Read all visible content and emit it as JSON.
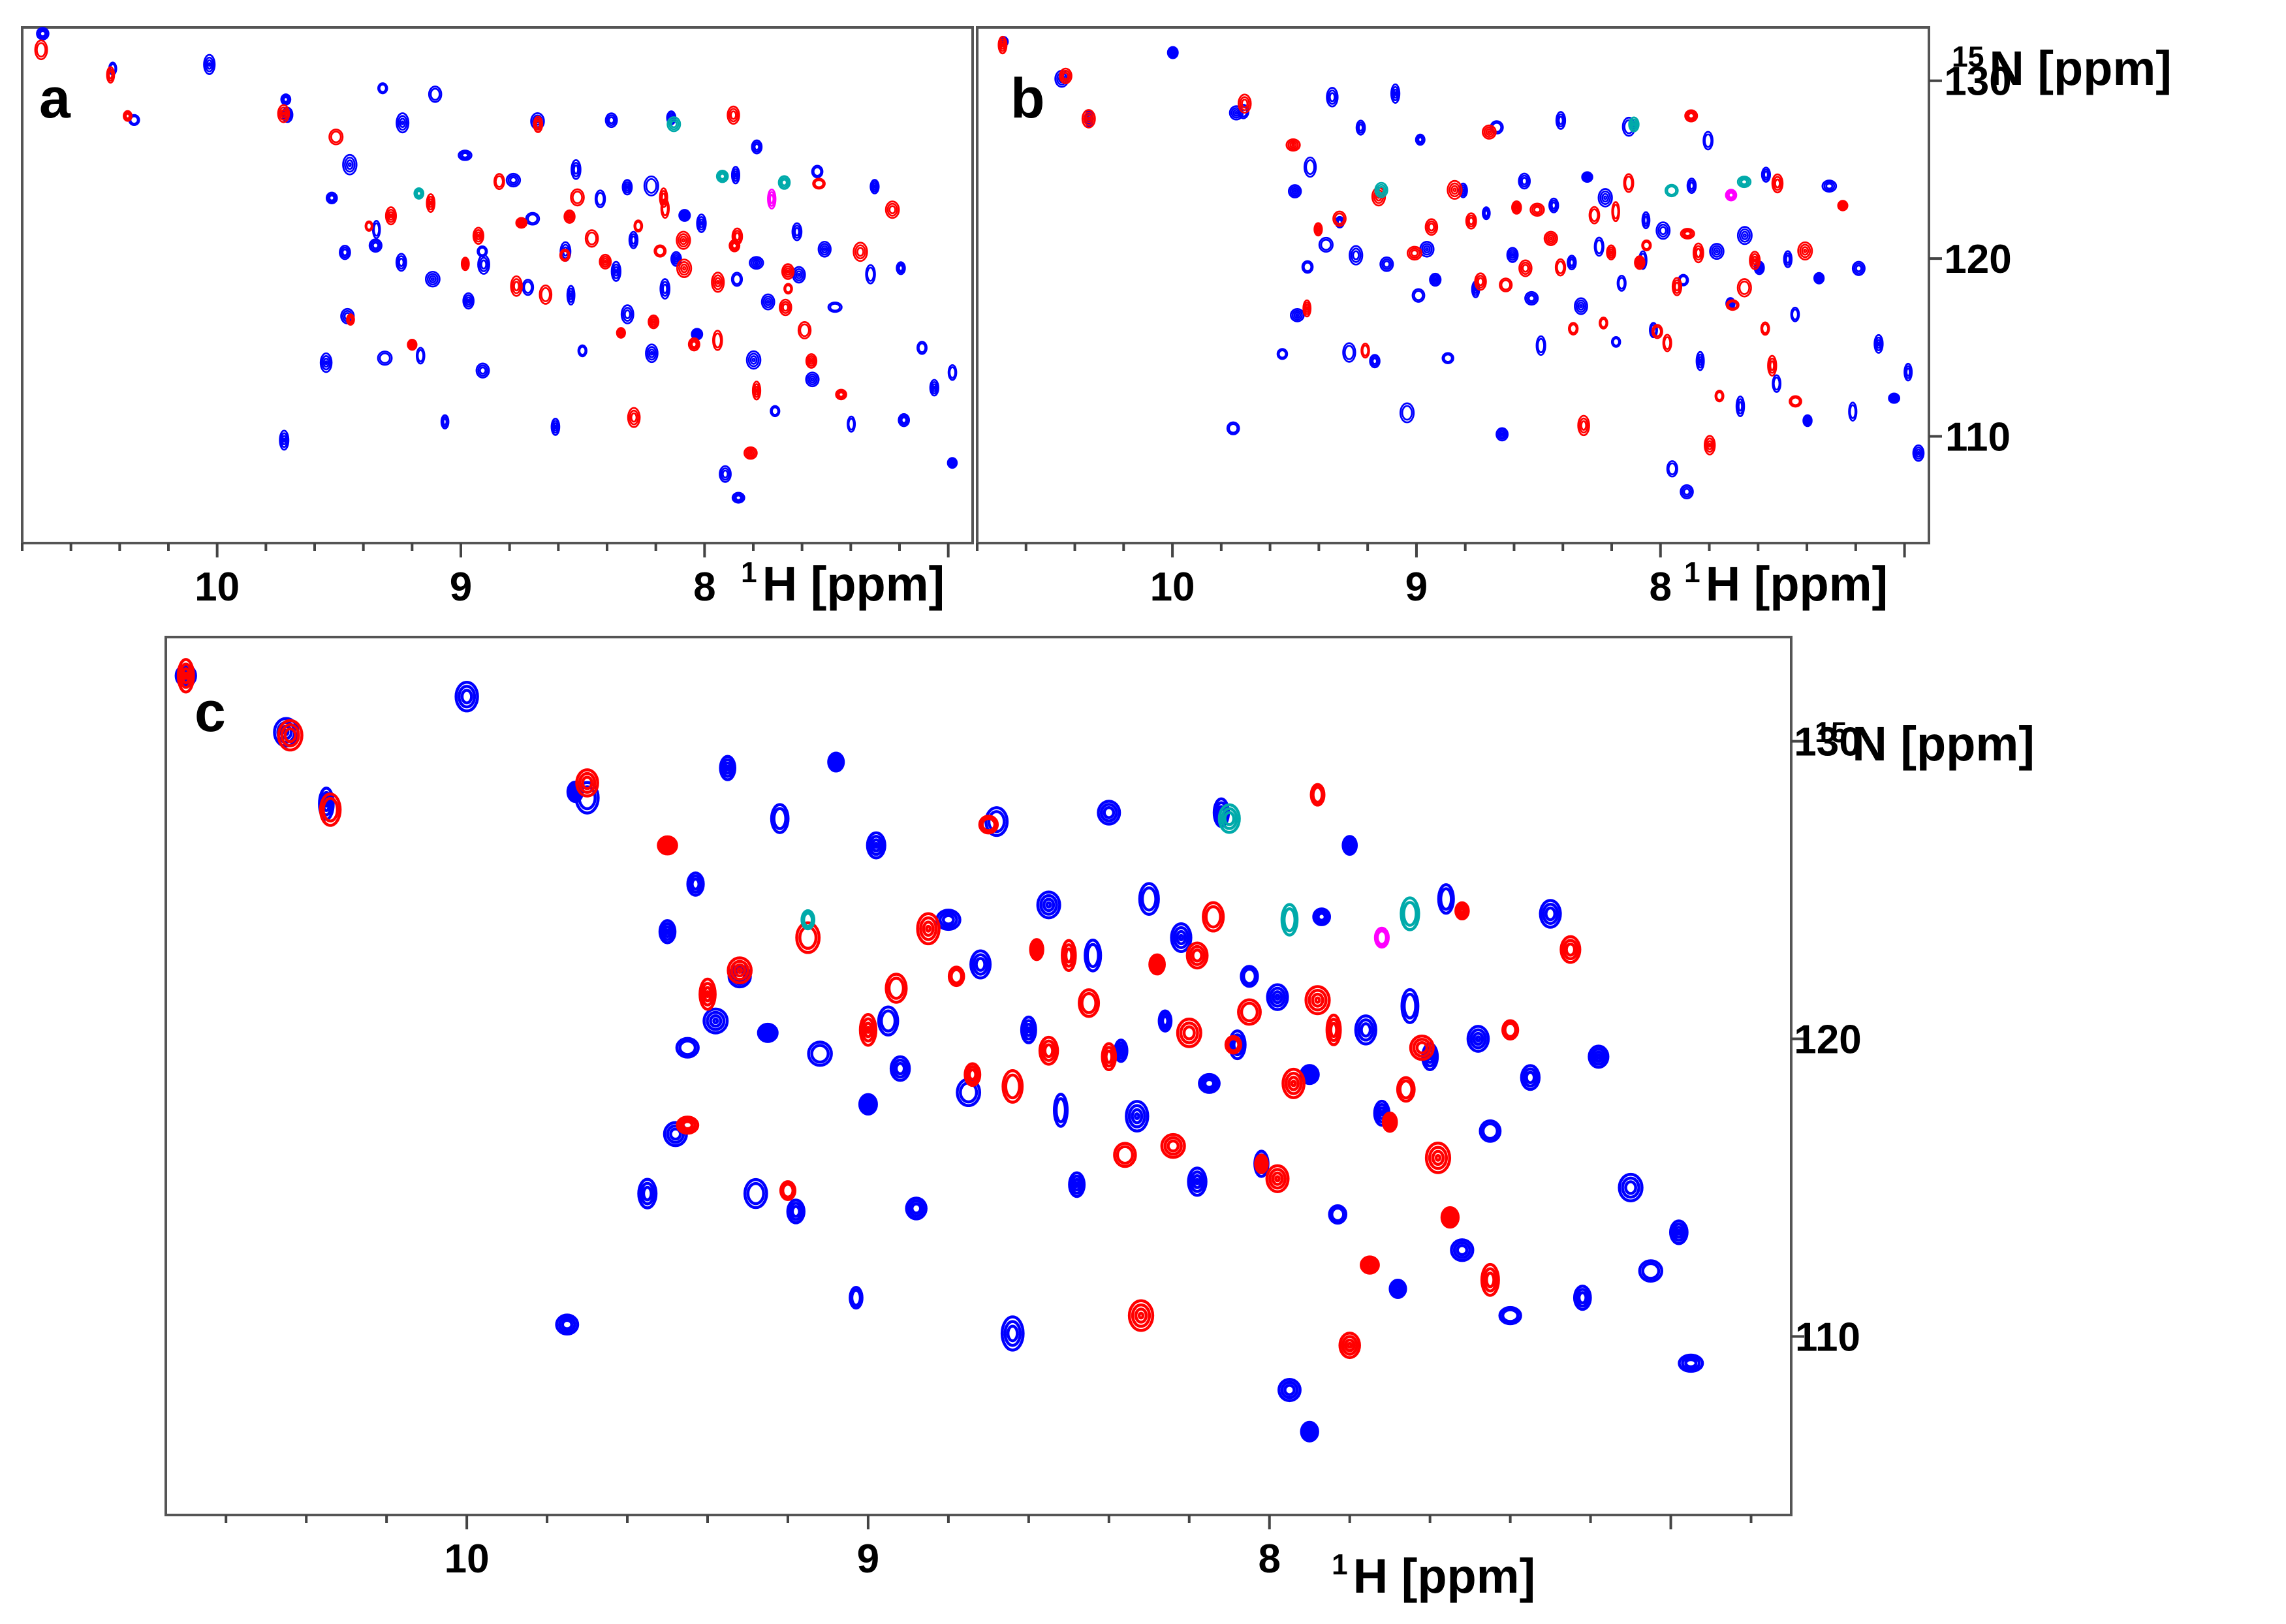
{
  "colors": {
    "series_1": "#0000ff",
    "series_2": "#ff0000",
    "minor_1": "#ff00ff",
    "minor_2": "#00aaaa"
  },
  "chart_data": [
    {
      "type": "scatter",
      "panel": "a",
      "title": "a",
      "xlabel_sup": "1",
      "xlabel": "H [ppm]",
      "ylabel": "",
      "xlim": [
        10.8,
        6.9
      ],
      "ylim": [
        133,
        104
      ],
      "x_ticks": [
        10,
        9,
        8
      ],
      "y_ticks": []
    },
    {
      "type": "scatter",
      "panel": "b",
      "title": "b",
      "xlabel_sup": "1",
      "xlabel": "H [ppm]",
      "ylabel_sup": "15",
      "ylabel": "N [ppm]",
      "xlim": [
        10.8,
        6.9
      ],
      "ylim": [
        133,
        104
      ],
      "x_ticks": [
        10,
        9,
        8
      ],
      "y_ticks": [
        110,
        120,
        130
      ]
    },
    {
      "type": "scatter",
      "panel": "c",
      "title": "c",
      "xlabel_sup": "1",
      "xlabel": "H [ppm]",
      "ylabel_sup": "15",
      "ylabel": "N [ppm]",
      "xlim": [
        10.75,
        6.7
      ],
      "ylim": [
        133.5,
        104
      ],
      "x_ticks": [
        10,
        9,
        8
      ],
      "y_ticks": [
        110,
        120,
        130
      ],
      "series": [
        {
          "name": "blue",
          "color_key": "series_1",
          "points": [
            [
              10.7,
              132.2
            ],
            [
              10.45,
              130.3
            ],
            [
              10.35,
              127.9
            ],
            [
              10.0,
              131.5
            ],
            [
              9.75,
              110.4
            ],
            [
              9.73,
              128.3
            ],
            [
              9.7,
              128.1
            ],
            [
              9.55,
              114.8
            ],
            [
              9.5,
              123.6
            ],
            [
              9.48,
              116.8
            ],
            [
              9.45,
              119.7
            ],
            [
              9.43,
              125.2
            ],
            [
              9.38,
              120.6
            ],
            [
              9.35,
              129.1
            ],
            [
              9.32,
              122.1
            ],
            [
              9.28,
              114.8
            ],
            [
              9.25,
              120.2
            ],
            [
              9.22,
              127.4
            ],
            [
              9.18,
              114.2
            ],
            [
              9.12,
              119.5
            ],
            [
              9.08,
              129.3
            ],
            [
              9.03,
              111.3
            ],
            [
              9.0,
              117.8
            ],
            [
              8.98,
              126.5
            ],
            [
              8.95,
              120.6
            ],
            [
              8.92,
              119.0
            ],
            [
              8.88,
              114.3
            ],
            [
              8.8,
              124.0
            ],
            [
              8.75,
              118.2
            ],
            [
              8.72,
              122.5
            ],
            [
              8.68,
              127.3
            ],
            [
              8.64,
              110.1
            ],
            [
              8.6,
              120.3
            ],
            [
              8.55,
              124.5
            ],
            [
              8.52,
              117.6
            ],
            [
              8.48,
              115.1
            ],
            [
              8.44,
              122.8
            ],
            [
              8.4,
              127.6
            ],
            [
              8.37,
              119.6
            ],
            [
              8.33,
              117.4
            ],
            [
              8.3,
              124.7
            ],
            [
              8.26,
              120.6
            ],
            [
              8.22,
              123.4
            ],
            [
              8.18,
              115.2
            ],
            [
              8.15,
              118.5
            ],
            [
              8.12,
              127.6
            ],
            [
              8.08,
              119.8
            ],
            [
              8.05,
              122.1
            ],
            [
              8.02,
              115.8
            ],
            [
              7.98,
              121.4
            ],
            [
              7.95,
              108.2
            ],
            [
              7.9,
              118.8
            ],
            [
              7.87,
              124.1
            ],
            [
              7.83,
              114.1
            ],
            [
              7.8,
              126.5
            ],
            [
              7.76,
              120.3
            ],
            [
              7.72,
              117.5
            ],
            [
              7.68,
              111.6
            ],
            [
              7.65,
              121.1
            ],
            [
              7.6,
              119.4
            ],
            [
              7.56,
              124.7
            ],
            [
              7.52,
              112.9
            ],
            [
              7.48,
              120.0
            ],
            [
              7.45,
              116.9
            ],
            [
              7.4,
              110.7
            ],
            [
              7.35,
              118.7
            ],
            [
              7.3,
              124.2
            ],
            [
              7.22,
              111.3
            ],
            [
              7.18,
              119.4
            ],
            [
              7.1,
              115.0
            ],
            [
              7.05,
              112.2
            ],
            [
              6.98,
              113.5
            ],
            [
              6.95,
              109.1
            ],
            [
              7.9,
              106.8
            ]
          ]
        },
        {
          "name": "red",
          "color_key": "series_2",
          "points": [
            [
              10.7,
              132.2
            ],
            [
              10.44,
              130.2
            ],
            [
              10.34,
              127.7
            ],
            [
              9.7,
              128.6
            ],
            [
              9.5,
              126.5
            ],
            [
              9.45,
              117.1
            ],
            [
              9.4,
              121.5
            ],
            [
              9.32,
              122.3
            ],
            [
              9.2,
              114.9
            ],
            [
              9.15,
              123.4
            ],
            [
              9.0,
              120.3
            ],
            [
              8.93,
              121.7
            ],
            [
              8.85,
              123.7
            ],
            [
              8.78,
              122.1
            ],
            [
              8.74,
              118.8
            ],
            [
              8.7,
              127.2
            ],
            [
              8.64,
              118.4
            ],
            [
              8.58,
              123.0
            ],
            [
              8.55,
              119.6
            ],
            [
              8.5,
              122.8
            ],
            [
              8.45,
              121.2
            ],
            [
              8.4,
              119.4
            ],
            [
              8.36,
              116.1
            ],
            [
              8.32,
              110.7
            ],
            [
              8.28,
              122.5
            ],
            [
              8.24,
              116.4
            ],
            [
              8.2,
              120.2
            ],
            [
              8.18,
              122.8
            ],
            [
              8.14,
              124.1
            ],
            [
              8.09,
              119.8
            ],
            [
              8.05,
              120.9
            ],
            [
              8.02,
              115.8
            ],
            [
              7.98,
              115.3
            ],
            [
              7.94,
              118.5
            ],
            [
              7.88,
              121.3
            ],
            [
              7.84,
              120.3
            ],
            [
              7.8,
              109.7
            ],
            [
              7.75,
              112.4
            ],
            [
              7.7,
              117.2
            ],
            [
              7.66,
              118.3
            ],
            [
              7.62,
              119.7
            ],
            [
              7.58,
              116.0
            ],
            [
              7.55,
              114.0
            ],
            [
              7.52,
              124.3
            ],
            [
              7.45,
              111.9
            ],
            [
              7.4,
              120.3
            ],
            [
              7.25,
              123.0
            ],
            [
              7.88,
              128.2
            ]
          ]
        },
        {
          "name": "magenta",
          "color_key": "minor_1",
          "points": [
            [
              7.72,
              123.4
            ]
          ]
        },
        {
          "name": "teal",
          "color_key": "minor_2",
          "points": [
            [
              7.95,
              124.0
            ],
            [
              7.65,
              124.2
            ],
            [
              8.1,
              127.4
            ],
            [
              9.15,
              124.0
            ]
          ]
        }
      ]
    }
  ]
}
